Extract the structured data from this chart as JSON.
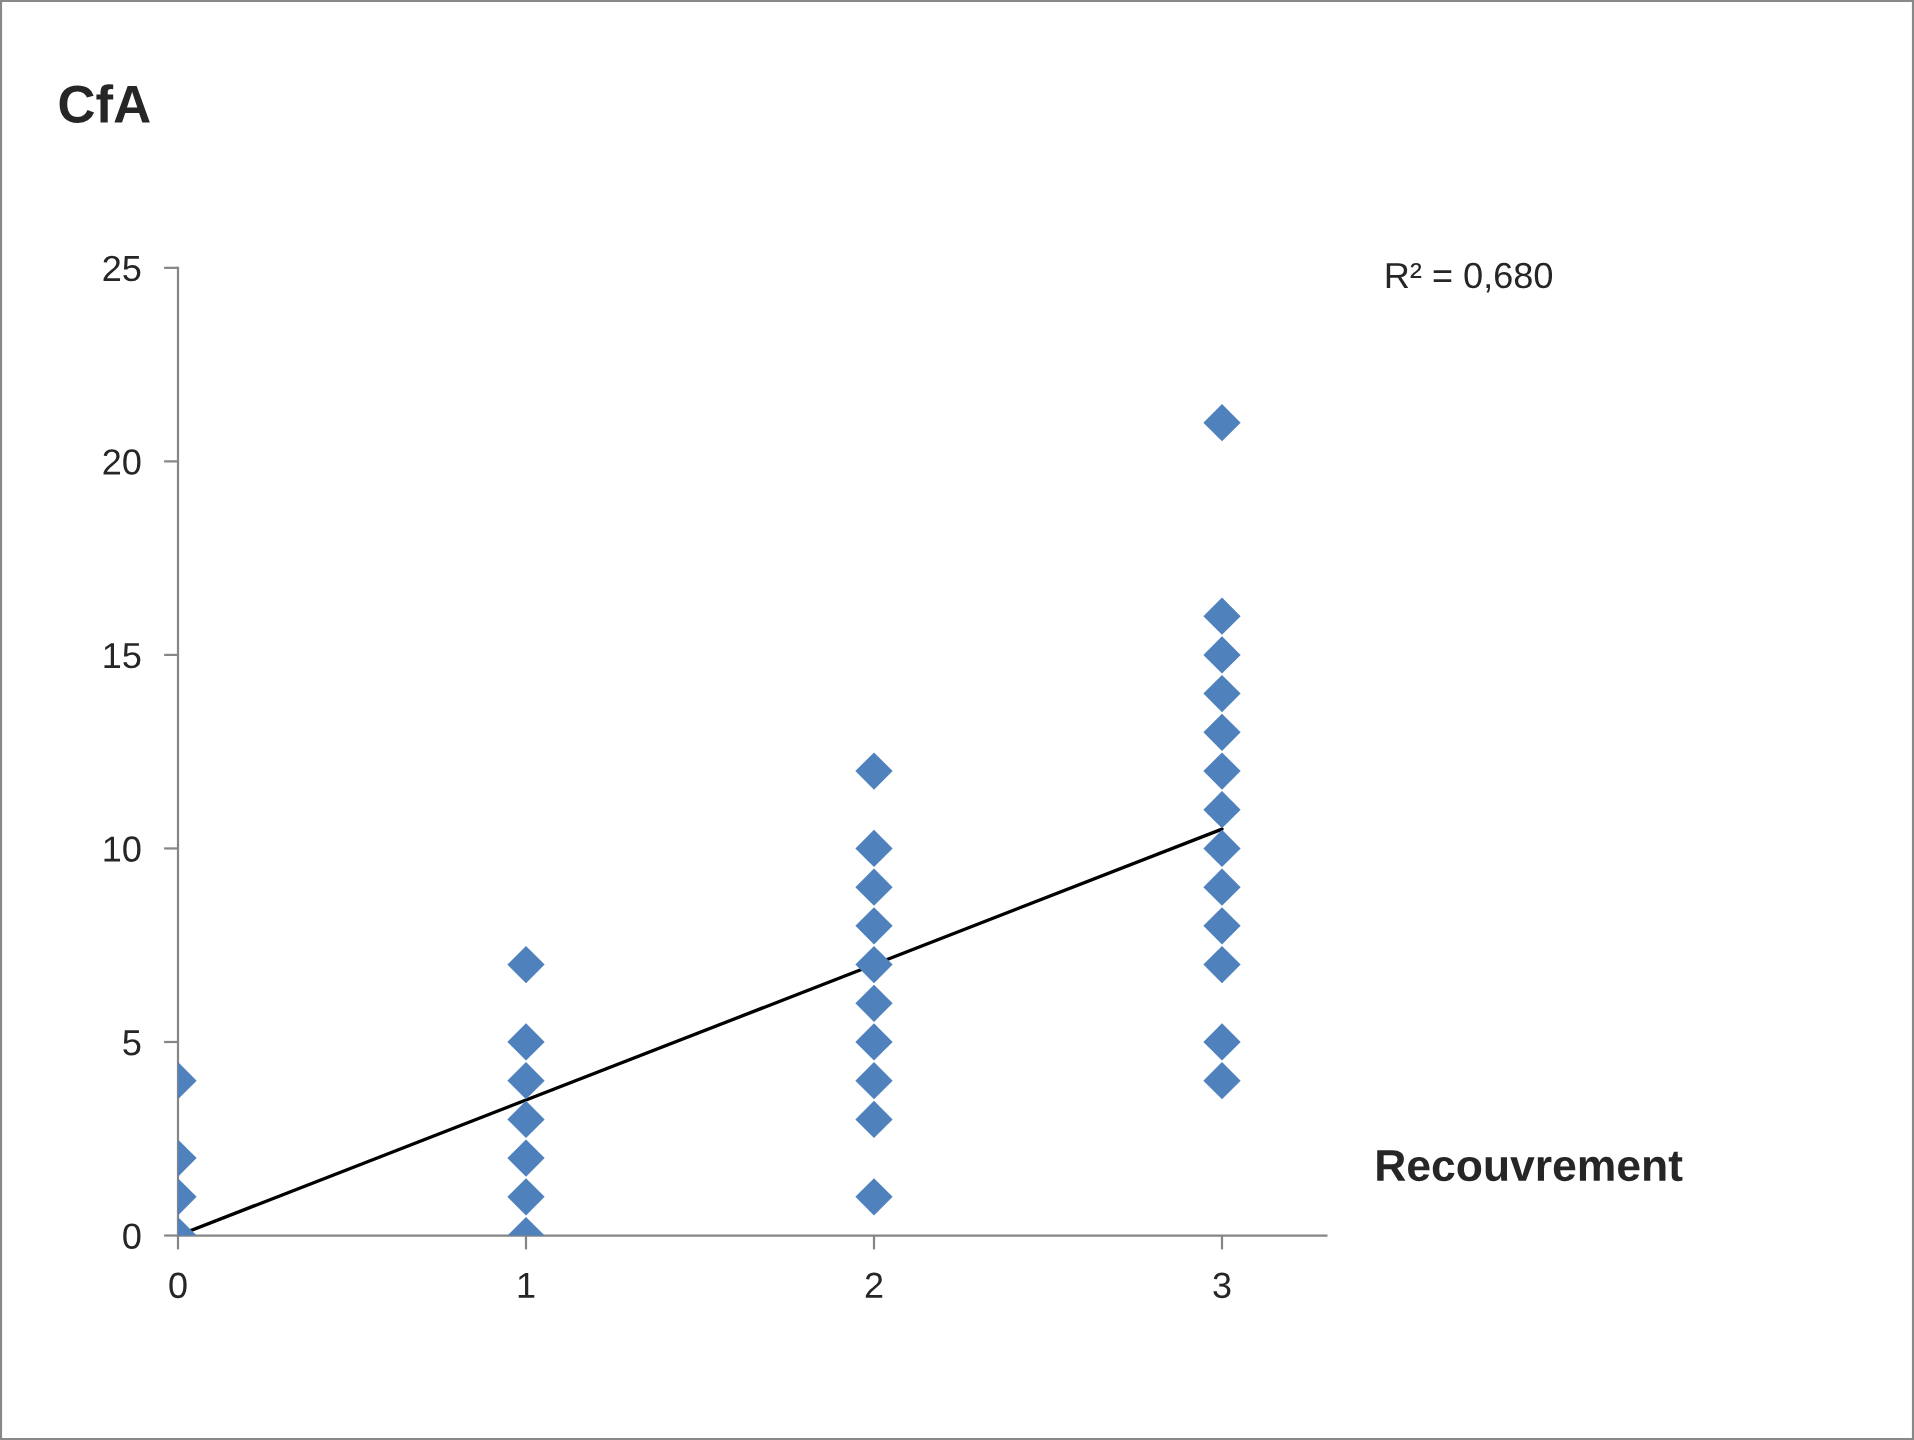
{
  "chart_data": {
    "type": "scatter",
    "title": "CfA",
    "xlabel": "Recouvrement",
    "x": [
      0,
      0,
      0,
      0,
      1,
      1,
      1,
      1,
      1,
      1,
      1,
      2,
      2,
      2,
      2,
      2,
      2,
      2,
      2,
      2,
      2,
      3,
      3,
      3,
      3,
      3,
      3,
      3,
      3,
      3,
      3,
      3,
      3,
      3
    ],
    "series": [
      {
        "color": "#4f81bd",
        "marker": "diamond",
        "values": [
          0,
          1,
          2,
          4,
          0,
          1,
          2,
          3,
          4,
          5,
          7,
          1,
          3,
          4,
          5,
          6,
          7,
          8,
          9,
          10,
          12,
          4,
          5,
          7,
          8,
          9,
          10,
          11,
          12,
          13,
          14,
          15,
          16,
          21
        ]
      },
      {
        "type": "line",
        "color": "#000000",
        "x": [
          0,
          3
        ],
        "values": [
          0,
          10.5
        ]
      }
    ],
    "annotations": [
      "R² = 0,680"
    ],
    "xlim": [
      0,
      3.3
    ],
    "xticks": [
      0,
      1,
      2,
      3
    ],
    "ylim": [
      0,
      25
    ],
    "yticks": [
      0,
      5,
      10,
      15,
      20,
      25
    ],
    "grid": false,
    "legend": false
  }
}
